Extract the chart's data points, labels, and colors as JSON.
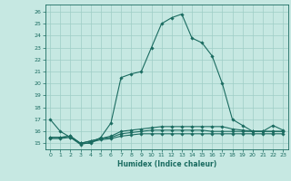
{
  "title": "",
  "xlabel": "Humidex (Indice chaleur)",
  "ylabel": "",
  "background_color": "#c6e8e2",
  "grid_color": "#9ecec6",
  "line_color": "#1a6b60",
  "xlim": [
    -0.5,
    23.5
  ],
  "ylim": [
    14.5,
    26.6
  ],
  "xticks": [
    0,
    1,
    2,
    3,
    4,
    5,
    6,
    7,
    8,
    9,
    10,
    11,
    12,
    13,
    14,
    15,
    16,
    17,
    18,
    19,
    20,
    21,
    22,
    23
  ],
  "yticks": [
    15,
    16,
    17,
    18,
    19,
    20,
    21,
    22,
    23,
    24,
    25,
    26
  ],
  "series1": [
    17,
    16,
    15.5,
    15,
    15,
    15.5,
    16.7,
    20.5,
    20.8,
    21.0,
    23.0,
    25.0,
    25.5,
    25.8,
    23.8,
    23.4,
    22.3,
    20.0,
    17.0,
    16.5,
    16.0,
    16.0,
    16.5,
    16.1
  ],
  "series2": [
    15.5,
    15.5,
    15.6,
    15.0,
    15.2,
    15.4,
    15.6,
    16.0,
    16.1,
    16.2,
    16.3,
    16.4,
    16.4,
    16.4,
    16.4,
    16.4,
    16.4,
    16.4,
    16.2,
    16.1,
    16.0,
    16.0,
    16.0,
    16.0
  ],
  "series3": [
    15.5,
    15.5,
    15.6,
    15.0,
    15.2,
    15.4,
    15.5,
    15.8,
    15.9,
    16.0,
    16.1,
    16.1,
    16.1,
    16.1,
    16.1,
    16.1,
    16.0,
    16.0,
    16.0,
    16.0,
    16.0,
    16.0,
    16.0,
    16.0
  ],
  "series4": [
    15.4,
    15.4,
    15.5,
    14.9,
    15.1,
    15.3,
    15.4,
    15.6,
    15.7,
    15.8,
    15.8,
    15.8,
    15.8,
    15.8,
    15.8,
    15.8,
    15.8,
    15.8,
    15.8,
    15.8,
    15.8,
    15.8,
    15.8,
    15.8
  ],
  "marker": "D",
  "markersize": 1.8,
  "linewidth": 0.8
}
